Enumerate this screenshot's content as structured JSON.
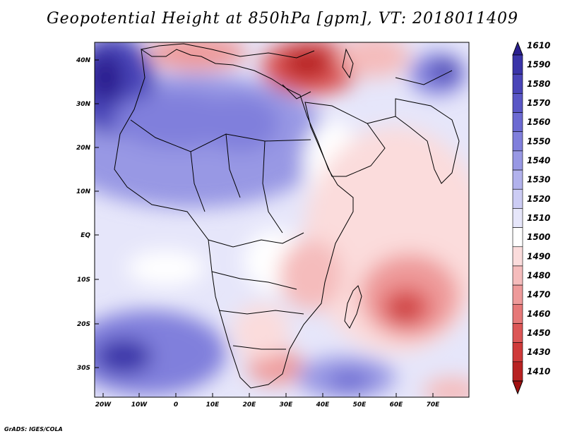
{
  "title": "Geopotential Height at 850hPa [gpm], VT: 2018011409",
  "credit": "GrADS: IGES/COLA",
  "axes": {
    "lat_labels": [
      "40N",
      "30N",
      "20N",
      "10N",
      "EQ",
      "10S",
      "20S",
      "30S"
    ],
    "lon_labels": [
      "20W",
      "10W",
      "0",
      "10E",
      "20E",
      "30E",
      "40E",
      "50E",
      "60E",
      "70E"
    ]
  },
  "colorbar": {
    "labels": [
      "1610",
      "1590",
      "1580",
      "1570",
      "1560",
      "1550",
      "1540",
      "1530",
      "1520",
      "1510",
      "1500",
      "1490",
      "1480",
      "1470",
      "1460",
      "1450",
      "1430",
      "1410"
    ],
    "colors": [
      "#2a1f8f",
      "#3a34a8",
      "#4a45b8",
      "#5a57c6",
      "#6c6ad2",
      "#807fdc",
      "#9898e4",
      "#b2b2ec",
      "#ccccf4",
      "#e6e6fa",
      "#ffffff",
      "#fbdcdc",
      "#f5bcbc",
      "#ee9a9a",
      "#e67878",
      "#dc5656",
      "#cf3a3a",
      "#b82222",
      "#a01010"
    ]
  },
  "colors": {
    "background": "#ffffff",
    "neutral": "#ffffff",
    "high": "#3a34a8",
    "low": "#b82222"
  }
}
